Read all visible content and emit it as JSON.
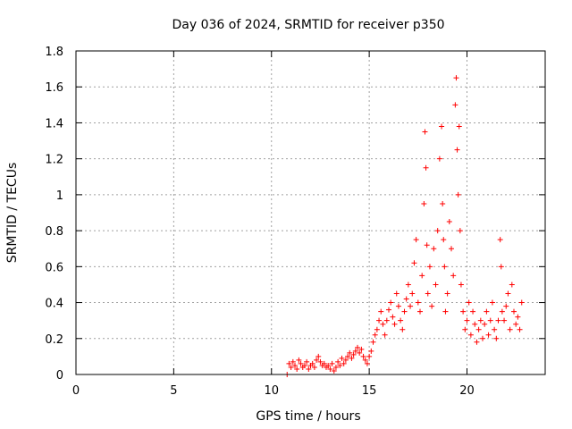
{
  "chart_data": {
    "type": "scatter",
    "title": "Day 036 of 2024, SRMTID for receiver p350",
    "xlabel": "GPS time / hours",
    "ylabel": "SRMTID / TECUs",
    "xlim": [
      0,
      24
    ],
    "ylim": [
      0,
      1.8
    ],
    "xticks": [
      0,
      5,
      10,
      15,
      20
    ],
    "yticks": [
      0,
      0.2,
      0.4,
      0.6,
      0.8,
      1,
      1.2,
      1.4,
      1.6,
      1.8
    ],
    "ytick_labels": [
      "0",
      "0.2",
      "0.4",
      "0.6",
      "0.8",
      "1",
      "1.2",
      "1.4",
      "1.6",
      "1.8"
    ],
    "grid": true,
    "marker": "+",
    "color": "#ff0000",
    "series": [
      {
        "name": "SRMTID",
        "x": [
          10.8,
          10.9,
          11.0,
          11.1,
          11.2,
          11.3,
          11.4,
          11.5,
          11.6,
          11.7,
          11.8,
          11.9,
          12.0,
          12.1,
          12.2,
          12.3,
          12.4,
          12.5,
          12.6,
          12.7,
          12.8,
          12.9,
          13.0,
          13.1,
          13.2,
          13.3,
          13.4,
          13.5,
          13.6,
          13.7,
          13.8,
          13.9,
          14.0,
          14.1,
          14.2,
          14.3,
          14.4,
          14.5,
          14.6,
          14.7,
          14.8,
          14.9,
          15.0,
          15.1,
          15.2,
          15.3,
          15.4,
          15.5,
          15.6,
          15.7,
          15.8,
          15.9,
          16.0,
          16.1,
          16.2,
          16.3,
          16.4,
          16.5,
          16.6,
          16.7,
          16.8,
          16.9,
          17.0,
          17.1,
          17.2,
          17.3,
          17.4,
          17.5,
          17.6,
          17.7,
          17.8,
          17.85,
          17.9,
          17.95,
          18.0,
          18.1,
          18.2,
          18.3,
          18.4,
          18.5,
          18.6,
          18.7,
          18.75,
          18.8,
          18.85,
          18.9,
          19.0,
          19.1,
          19.2,
          19.3,
          19.4,
          19.45,
          19.5,
          19.55,
          19.6,
          19.65,
          19.7,
          19.8,
          19.9,
          20.0,
          20.1,
          20.2,
          20.3,
          20.4,
          20.5,
          20.6,
          20.7,
          20.8,
          20.9,
          21.0,
          21.1,
          21.2,
          21.3,
          21.4,
          21.5,
          21.6,
          21.7,
          21.75,
          21.8,
          21.9,
          22.0,
          22.1,
          22.2,
          22.3,
          22.4,
          22.5,
          22.6,
          22.7,
          22.8
        ],
        "y": [
          0.0,
          0.06,
          0.04,
          0.07,
          0.05,
          0.03,
          0.08,
          0.06,
          0.04,
          0.05,
          0.07,
          0.03,
          0.05,
          0.06,
          0.04,
          0.08,
          0.1,
          0.07,
          0.05,
          0.06,
          0.04,
          0.05,
          0.03,
          0.06,
          0.02,
          0.04,
          0.07,
          0.05,
          0.09,
          0.06,
          0.08,
          0.1,
          0.12,
          0.09,
          0.11,
          0.13,
          0.15,
          0.12,
          0.14,
          0.1,
          0.08,
          0.06,
          0.1,
          0.13,
          0.18,
          0.22,
          0.25,
          0.3,
          0.35,
          0.28,
          0.22,
          0.3,
          0.36,
          0.4,
          0.32,
          0.28,
          0.45,
          0.38,
          0.3,
          0.25,
          0.35,
          0.42,
          0.5,
          0.38,
          0.45,
          0.62,
          0.75,
          0.4,
          0.35,
          0.55,
          0.95,
          1.35,
          1.15,
          0.72,
          0.45,
          0.6,
          0.38,
          0.7,
          0.5,
          0.8,
          1.2,
          1.38,
          0.95,
          0.75,
          0.6,
          0.35,
          0.45,
          0.85,
          0.7,
          0.55,
          1.5,
          1.65,
          1.25,
          1.0,
          1.38,
          0.8,
          0.5,
          0.35,
          0.25,
          0.3,
          0.4,
          0.22,
          0.35,
          0.28,
          0.18,
          0.25,
          0.3,
          0.2,
          0.28,
          0.35,
          0.22,
          0.3,
          0.4,
          0.25,
          0.2,
          0.3,
          0.75,
          0.6,
          0.35,
          0.3,
          0.38,
          0.45,
          0.25,
          0.5,
          0.35,
          0.28,
          0.32,
          0.25,
          0.4
        ]
      }
    ]
  }
}
